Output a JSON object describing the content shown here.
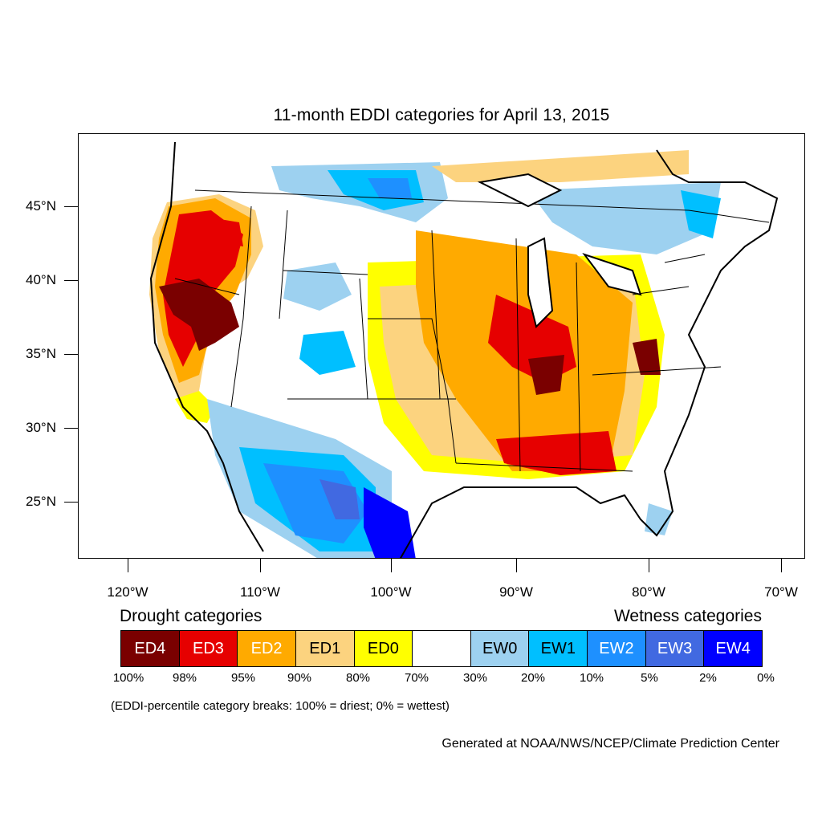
{
  "title": "11-month EDDI categories for April 13, 2015",
  "axes": {
    "latitudes": [
      "45°N",
      "40°N",
      "35°N",
      "30°N",
      "25°N"
    ],
    "longitudes": [
      "120°W",
      "110°W",
      "100°W",
      "90°W",
      "80°W",
      "70°W"
    ]
  },
  "legend": {
    "drought_heading": "Drought categories",
    "wetness_heading": "Wetness categories",
    "categories": [
      {
        "label": "ED4",
        "color": "#7a0000",
        "text_color": "#ffffff"
      },
      {
        "label": "ED3",
        "color": "#e60000",
        "text_color": "#ffffff"
      },
      {
        "label": "ED2",
        "color": "#ffaa00",
        "text_color": "#ffffff"
      },
      {
        "label": "ED1",
        "color": "#fcd37f",
        "text_color": "#000000"
      },
      {
        "label": "ED0",
        "color": "#ffff00",
        "text_color": "#000000"
      },
      {
        "label": "",
        "color": "#ffffff",
        "text_color": "#000000"
      },
      {
        "label": "EW0",
        "color": "#9dd1f0",
        "text_color": "#000000"
      },
      {
        "label": "EW1",
        "color": "#00bfff",
        "text_color": "#000000"
      },
      {
        "label": "EW2",
        "color": "#1e90ff",
        "text_color": "#ffffff"
      },
      {
        "label": "EW3",
        "color": "#4169e1",
        "text_color": "#ffffff"
      },
      {
        "label": "EW4",
        "color": "#0000ff",
        "text_color": "#ffffff"
      }
    ],
    "percent_breaks": [
      "100%",
      "98%",
      "95%",
      "90%",
      "80%",
      "70%",
      "30%",
      "20%",
      "10%",
      "5%",
      "2%",
      "0%"
    ]
  },
  "note": "(EDDI-percentile category breaks: 100% = driest; 0% = wettest)",
  "credit": "Generated at NOAA/NWS/NCEP/Climate Prediction Center"
}
